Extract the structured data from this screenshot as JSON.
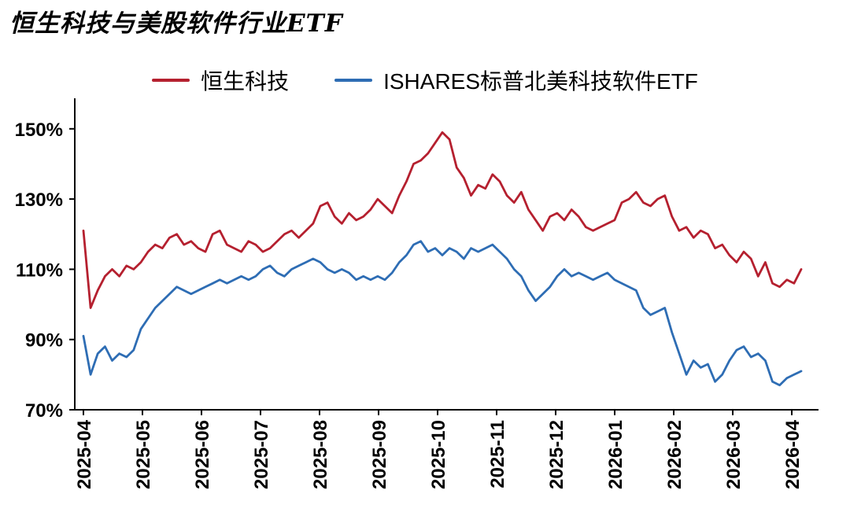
{
  "title": "恒生科技与美股软件行业ETF",
  "legend": [
    {
      "label": "恒生科技",
      "color": "#b5202f"
    },
    {
      "label": "ISHARES标普北美科技软件ETF",
      "color": "#2e6db4"
    }
  ],
  "chart_data": {
    "type": "line",
    "title": "恒生科技与美股软件行业ETF",
    "x_labels": [
      "2025-04",
      "2025-05",
      "2025-06",
      "2025-07",
      "2025-08",
      "2025-09",
      "2025-10",
      "2025-11",
      "2025-12",
      "2026-01",
      "2026-02",
      "2026-03",
      "2026-04"
    ],
    "xlabel": "",
    "ylabel": "",
    "ylim": [
      70,
      156
    ],
    "yticks": [
      70,
      90,
      110,
      130,
      150
    ],
    "ytick_labels": [
      "70%",
      "90%",
      "110%",
      "130%",
      "150%"
    ],
    "grid": false,
    "legend_position": "top",
    "series": [
      {
        "name": "恒生科技",
        "color": "#b5202f",
        "values": [
          121,
          99,
          104,
          108,
          110,
          108,
          111,
          110,
          112,
          115,
          117,
          116,
          119,
          120,
          117,
          118,
          116,
          115,
          120,
          121,
          117,
          116,
          115,
          118,
          117,
          115,
          116,
          118,
          120,
          121,
          119,
          121,
          123,
          128,
          129,
          125,
          123,
          126,
          124,
          125,
          127,
          130,
          128,
          126,
          131,
          135,
          140,
          141,
          143,
          146,
          149,
          147,
          139,
          136,
          131,
          134,
          133,
          137,
          135,
          131,
          129,
          132,
          127,
          124,
          121,
          125,
          126,
          124,
          127,
          125,
          122,
          121,
          122,
          123,
          124,
          129,
          130,
          132,
          129,
          128,
          130,
          131,
          125,
          121,
          122,
          119,
          121,
          120,
          116,
          117,
          114,
          112,
          115,
          113,
          108,
          112,
          106,
          105,
          107,
          106,
          110
        ]
      },
      {
        "name": "ISHARES标普北美科技软件ETF",
        "color": "#2e6db4",
        "values": [
          91,
          80,
          86,
          88,
          84,
          86,
          85,
          87,
          93,
          96,
          99,
          101,
          103,
          105,
          104,
          103,
          104,
          105,
          106,
          107,
          106,
          107,
          108,
          107,
          108,
          110,
          111,
          109,
          108,
          110,
          111,
          112,
          113,
          112,
          110,
          109,
          110,
          109,
          107,
          108,
          107,
          108,
          107,
          109,
          112,
          114,
          117,
          118,
          115,
          116,
          114,
          116,
          115,
          113,
          116,
          115,
          116,
          117,
          115,
          113,
          110,
          108,
          104,
          101,
          103,
          105,
          108,
          110,
          108,
          109,
          108,
          107,
          108,
          109,
          107,
          106,
          105,
          104,
          99,
          97,
          98,
          99,
          92,
          86,
          80,
          84,
          82,
          83,
          78,
          80,
          84,
          87,
          88,
          85,
          86,
          84,
          78,
          77,
          79,
          80,
          81
        ]
      }
    ]
  }
}
